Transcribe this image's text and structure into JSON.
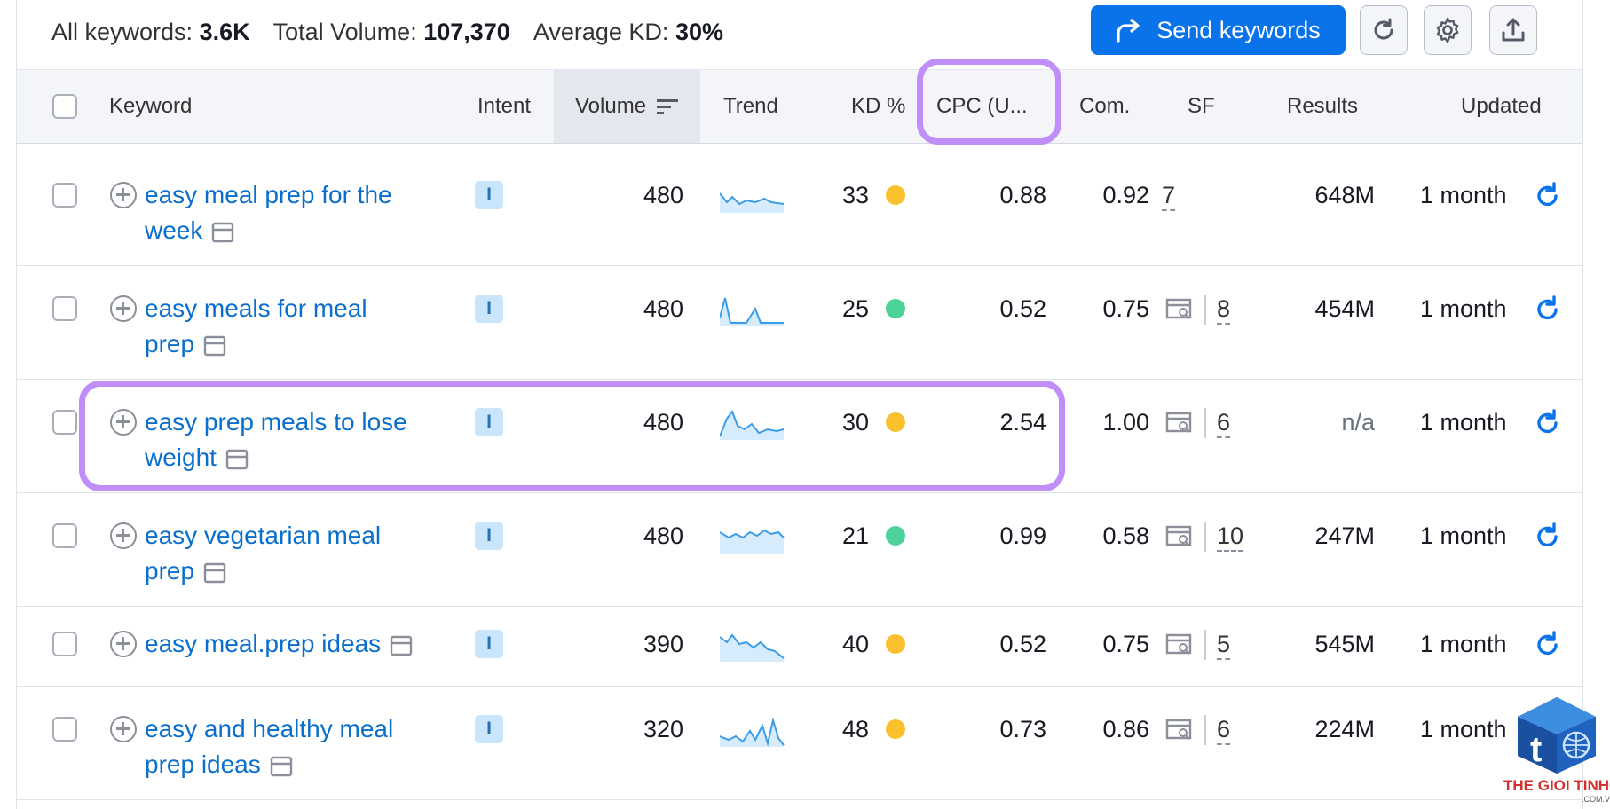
{
  "summary": {
    "all_keywords_label": "All keywords:",
    "all_keywords_value": "3.6K",
    "total_volume_label": "Total Volume:",
    "total_volume_value": "107,370",
    "avg_kd_label": "Average KD:",
    "avg_kd_value": "30%"
  },
  "toolbar": {
    "send_label": "Send keywords",
    "refresh_icon": "refresh-icon",
    "settings_icon": "gear-icon",
    "export_icon": "upload-icon"
  },
  "columns": {
    "keyword": "Keyword",
    "intent": "Intent",
    "volume": "Volume",
    "trend": "Trend",
    "kd": "KD %",
    "cpc": "CPC (U...",
    "com": "Com.",
    "sf": "SF",
    "results": "Results",
    "updated": "Updated"
  },
  "rows": [
    {
      "kw1": "easy meal prep for the",
      "kw2": "week",
      "intent": "I",
      "volume": "480",
      "kd": "33",
      "kd_color": "#fbc02d",
      "cpc": "0.88",
      "com": "0.92",
      "sf": "7",
      "sf_icon": false,
      "results": "648M",
      "updated": "1 month"
    },
    {
      "kw1": "easy meals for meal",
      "kw2": "prep",
      "intent": "I",
      "volume": "480",
      "kd": "25",
      "kd_color": "#4dd29a",
      "cpc": "0.52",
      "com": "0.75",
      "sf": "8",
      "sf_icon": true,
      "results": "454M",
      "updated": "1 month"
    },
    {
      "kw1": "easy prep meals to lose",
      "kw2": "weight",
      "intent": "I",
      "volume": "480",
      "kd": "30",
      "kd_color": "#fbc02d",
      "cpc": "2.54",
      "com": "1.00",
      "sf": "6",
      "sf_icon": true,
      "results": "n/a",
      "updated": "1 month"
    },
    {
      "kw1": "easy vegetarian meal",
      "kw2": "prep",
      "intent": "I",
      "volume": "480",
      "kd": "21",
      "kd_color": "#4dd29a",
      "cpc": "0.99",
      "com": "0.58",
      "sf": "10",
      "sf_icon": true,
      "results": "247M",
      "updated": "1 month"
    },
    {
      "kw1": "easy meal.prep ideas",
      "kw2": "",
      "intent": "I",
      "volume": "390",
      "kd": "40",
      "kd_color": "#fbc02d",
      "cpc": "0.52",
      "com": "0.75",
      "sf": "5",
      "sf_icon": true,
      "results": "545M",
      "updated": "1 month"
    },
    {
      "kw1": "easy and healthy meal",
      "kw2": "prep ideas",
      "intent": "I",
      "volume": "320",
      "kd": "48",
      "kd_color": "#fbc02d",
      "cpc": "0.73",
      "com": "0.86",
      "sf": "6",
      "sf_icon": true,
      "results": "224M",
      "updated": "1 month"
    }
  ],
  "watermark": {
    "brand": "THE GIOI TINHOC",
    "sub": ".COM.VN"
  }
}
